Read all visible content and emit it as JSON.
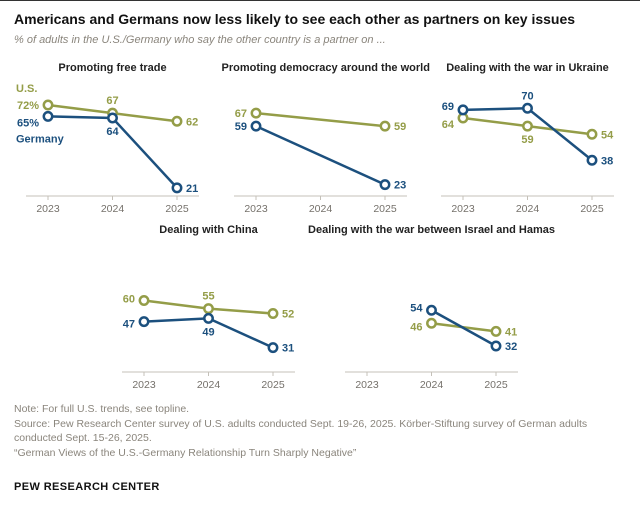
{
  "header": {
    "title": "Americans and Germans now less likely to see each other as partners on key issues",
    "subtitle": "% of adults in the U.S./Germany who say the other country is a partner on ..."
  },
  "legend": {
    "us": "U.S.",
    "germany": "Germany"
  },
  "colors": {
    "us": "#949d48",
    "germany": "#1c507e",
    "axis": "#c4c0b8",
    "tick_label": "#75716b"
  },
  "chart_data": [
    {
      "type": "line",
      "title": "Promoting free trade",
      "x_ticks": [
        "2023",
        "2024",
        "2025"
      ],
      "ylim": [
        15,
        80
      ],
      "series": [
        {
          "name": "U.S.",
          "color": "us",
          "points": [
            {
              "x": "2023",
              "value": 72,
              "label": "72%",
              "label_pos": "left"
            },
            {
              "x": "2024",
              "value": 67,
              "label": "67",
              "label_pos": "above"
            },
            {
              "x": "2025",
              "value": 62,
              "label": "62",
              "label_pos": "right"
            }
          ]
        },
        {
          "name": "Germany",
          "color": "germany",
          "points": [
            {
              "x": "2023",
              "value": 65,
              "label": "65%",
              "label_pos": "left",
              "dy": 6
            },
            {
              "x": "2024",
              "value": 64,
              "label": "64",
              "label_pos": "below"
            },
            {
              "x": "2025",
              "value": 21,
              "label": "21",
              "label_pos": "right"
            }
          ]
        }
      ]
    },
    {
      "type": "line",
      "title": "Promoting democracy around the world",
      "x_ticks": [
        "2023",
        "2024",
        "2025"
      ],
      "ylim": [
        15,
        80
      ],
      "series": [
        {
          "name": "U.S.",
          "color": "us",
          "points": [
            {
              "x": "2023",
              "value": 67,
              "label": "67",
              "label_pos": "left"
            },
            {
              "x": "2025",
              "value": 59,
              "label": "59",
              "label_pos": "right"
            }
          ]
        },
        {
          "name": "Germany",
          "color": "germany",
          "points": [
            {
              "x": "2023",
              "value": 59,
              "label": "59",
              "label_pos": "left"
            },
            {
              "x": "2025",
              "value": 23,
              "label": "23",
              "label_pos": "right"
            }
          ]
        }
      ]
    },
    {
      "type": "line",
      "title": "Dealing with the war in Ukraine",
      "x_ticks": [
        "2023",
        "2024",
        "2025"
      ],
      "ylim": [
        15,
        80
      ],
      "series": [
        {
          "name": "U.S.",
          "color": "us",
          "points": [
            {
              "x": "2023",
              "value": 64,
              "label": "64",
              "label_pos": "left",
              "dy": 6
            },
            {
              "x": "2024",
              "value": 59,
              "label": "59",
              "label_pos": "below"
            },
            {
              "x": "2025",
              "value": 54,
              "label": "54",
              "label_pos": "right"
            }
          ]
        },
        {
          "name": "Germany",
          "color": "germany",
          "points": [
            {
              "x": "2023",
              "value": 69,
              "label": "69",
              "label_pos": "left",
              "dy": -4
            },
            {
              "x": "2024",
              "value": 70,
              "label": "70",
              "label_pos": "above"
            },
            {
              "x": "2025",
              "value": 38,
              "label": "38",
              "label_pos": "right"
            }
          ]
        }
      ]
    },
    {
      "type": "line",
      "title": "Dealing with China",
      "x_ticks": [
        "2023",
        "2024",
        "2025"
      ],
      "ylim": [
        15,
        80
      ],
      "series": [
        {
          "name": "U.S.",
          "color": "us",
          "points": [
            {
              "x": "2023",
              "value": 60,
              "label": "60",
              "label_pos": "left",
              "dy": -2
            },
            {
              "x": "2024",
              "value": 55,
              "label": "55",
              "label_pos": "above"
            },
            {
              "x": "2025",
              "value": 52,
              "label": "52",
              "label_pos": "right"
            }
          ]
        },
        {
          "name": "Germany",
          "color": "germany",
          "points": [
            {
              "x": "2023",
              "value": 47,
              "label": "47",
              "label_pos": "left",
              "dy": 2
            },
            {
              "x": "2024",
              "value": 49,
              "label": "49",
              "label_pos": "below"
            },
            {
              "x": "2025",
              "value": 31,
              "label": "31",
              "label_pos": "right"
            }
          ]
        }
      ]
    },
    {
      "type": "line",
      "title": "Dealing with the war between Israel and Hamas",
      "x_ticks": [
        "2023",
        "2024",
        "2025"
      ],
      "ylim": [
        15,
        80
      ],
      "series": [
        {
          "name": "U.S.",
          "color": "us",
          "points": [
            {
              "x": "2024",
              "value": 46,
              "label": "46",
              "label_pos": "left",
              "dy": 3
            },
            {
              "x": "2025",
              "value": 41,
              "label": "41",
              "label_pos": "right"
            }
          ]
        },
        {
          "name": "Germany",
          "color": "germany",
          "points": [
            {
              "x": "2024",
              "value": 54,
              "label": "54",
              "label_pos": "left",
              "dy": -3
            },
            {
              "x": "2025",
              "value": 32,
              "label": "32",
              "label_pos": "right"
            }
          ]
        }
      ]
    }
  ],
  "notes": {
    "note": "Note: For full U.S. trends, see topline.",
    "source": "Source: Pew Research Center survey of U.S. adults conducted Sept. 19-26, 2025. Körber-Stiftung survey of German adults conducted Sept. 15-26, 2025.",
    "quote": "“German Views of the U.S.-Germany Relationship Turn Sharply Negative”"
  },
  "footer": {
    "brand": "PEW RESEARCH CENTER"
  }
}
